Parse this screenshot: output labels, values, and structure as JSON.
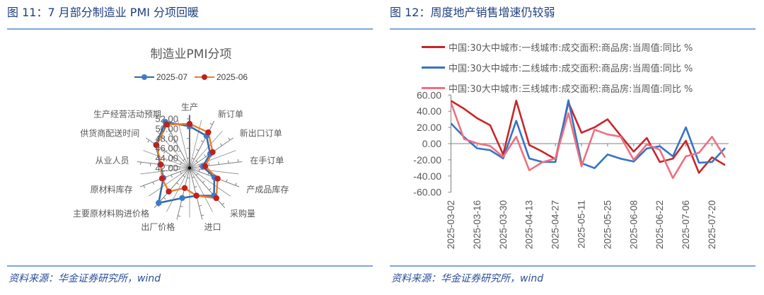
{
  "figures": [
    {
      "title": "图 11：7 月部分制造业 PMI 分项回暖",
      "source": "资料来源：华金证券研究所，wind"
    },
    {
      "title": "图 12：周度地产销售增速仍较弱",
      "source": "资料来源：华金证券研究所，wind"
    }
  ],
  "colors": {
    "title": "#1F3F7F",
    "rule": "#7FA7D9",
    "source": "#2B4C9B",
    "axis_text": "#595959"
  },
  "chart_data": [
    {
      "type": "radar",
      "title": "制造业PMI分项",
      "categories": [
        "生产",
        "新订单",
        "新出口订单",
        "在手订单",
        "产成品库存",
        "采购量",
        "进口",
        "出厂价格",
        "主要原材料购进价格",
        "原材料库存",
        "从业人员",
        "供货商配送时间",
        "生产经营活动预期"
      ],
      "series": [
        {
          "name": "2025-07",
          "line_color": "#2E6BA8",
          "marker_color": "#3A7CCB",
          "values": [
            50.5,
            49.4,
            47.1,
            44.7,
            47.4,
            49.5,
            47.8,
            48.3,
            51.5,
            47.7,
            48.0,
            50.3,
            52.6
          ]
        },
        {
          "name": "2025-06",
          "line_color": "#ED7D31",
          "marker_color": "#C0201E",
          "values": [
            51.0,
            50.2,
            47.7,
            45.2,
            48.1,
            50.2,
            47.8,
            46.2,
            48.4,
            48.0,
            47.9,
            50.2,
            52.0
          ]
        }
      ],
      "r_ticks": [
        42,
        44,
        46,
        48,
        50,
        52
      ],
      "r_tick_labels": [
        "42.00",
        "44.00",
        "46.00",
        "48.00",
        "50.00",
        "52.00"
      ],
      "rlim": [
        42,
        53
      ],
      "legend_position": "top"
    },
    {
      "type": "line",
      "title": "",
      "x": [
        "2025-03-02",
        "2025-03-09",
        "2025-03-16",
        "2025-03-23",
        "2025-03-30",
        "2025-04-06",
        "2025-04-13",
        "2025-04-20",
        "2025-04-27",
        "2025-05-04",
        "2025-05-11",
        "2025-05-18",
        "2025-05-25",
        "2025-06-01",
        "2025-06-08",
        "2025-06-15",
        "2025-06-22",
        "2025-06-29",
        "2025-07-06",
        "2025-07-13",
        "2025-07-20",
        "2025-07-27"
      ],
      "x_tick_labels": [
        "2025-03-02",
        "2025-03-16",
        "2025-03-30",
        "2025-04-13",
        "2025-04-27",
        "2025-05-11",
        "2025-05-25",
        "2025-06-08",
        "2025-06-22",
        "2025-07-06",
        "2025-07-20"
      ],
      "series": [
        {
          "name": "中国:30大中城市:一线城市:成交面积:商品房:当周值:同比 %",
          "color": "#C8262A",
          "values": [
            52.8,
            43.1,
            31.4,
            22.7,
            -13.4,
            53.0,
            -1.7,
            -9.9,
            -19.2,
            50.7,
            13.4,
            20.1,
            30.0,
            9.9,
            -9.9,
            7.0,
            -22.7,
            -18.6,
            3.5,
            -36.1,
            -16.9,
            -26.5
          ]
        },
        {
          "name": "中国:30大中城市:二线城市:成交面积:商品房:当周值:同比 %",
          "color": "#3474C4",
          "values": [
            25.0,
            8.2,
            -5.8,
            -8.1,
            -18.3,
            28.2,
            -18.3,
            -22.7,
            -22.7,
            53.5,
            -24.2,
            -30.3,
            -13.4,
            -18.6,
            -22.1,
            -6.1,
            -3.2,
            -15.7,
            20.1,
            -23.6,
            -22.7,
            -5.5
          ]
        },
        {
          "name": "中国:30大中城市:三线城市:成交面积:商品房:当周值:同比 %",
          "color": "#EF6F80",
          "values": [
            50.5,
            5.8,
            0.3,
            -2.9,
            -16.3,
            8.5,
            -32.9,
            -23.0,
            -18.3,
            37.6,
            -28.0,
            17.2,
            11.4,
            8.5,
            -20.1,
            -0.9,
            -7.6,
            -42.5,
            -15.7,
            -11.4,
            8.5,
            -17.2
          ]
        }
      ],
      "yticks": [
        60,
        40,
        20,
        0,
        -20,
        -40,
        -60
      ],
      "ytick_labels": [
        "60.00",
        "40.00",
        "20.00",
        "0.00",
        "-20.00",
        "-40.00",
        "-60.00"
      ],
      "ylim": [
        -60,
        60
      ],
      "xlabel": "",
      "ylabel": "",
      "grid": false,
      "legend_position": "top"
    }
  ]
}
